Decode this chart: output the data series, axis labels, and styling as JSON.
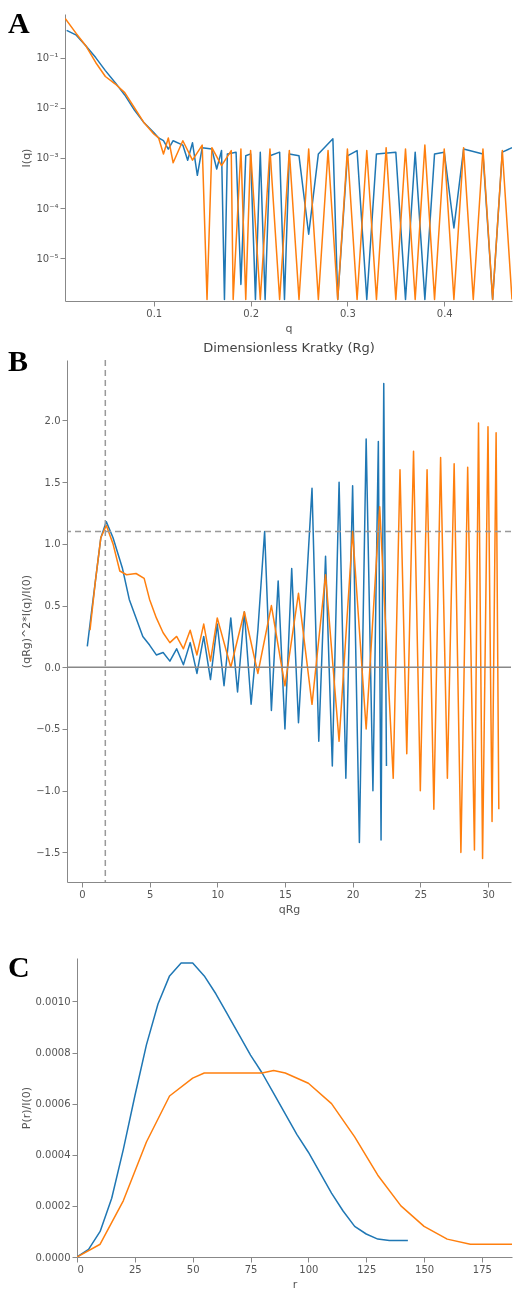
{
  "chart_data": [
    {
      "type": "line",
      "annotations": [
        "A"
      ],
      "xlabel": "q",
      "ylabel": "I(q)",
      "log": "y",
      "xlim": [
        0.0083,
        0.47
      ],
      "ylim": [
        1.4e-06,
        0.74
      ],
      "xticks": [
        0.1,
        0.2,
        0.3,
        0.4
      ],
      "yticks": [
        {
          "value": 0.1,
          "label": "10⁻¹"
        },
        {
          "value": 0.01,
          "label": "10⁻²"
        },
        {
          "value": 0.001,
          "label": "10⁻³"
        },
        {
          "value": 0.0001,
          "label": "10⁻⁴"
        },
        {
          "value": 1e-05,
          "label": "10⁻⁵"
        }
      ],
      "series": [
        {
          "color": "#1f77b4",
          "x": [
            0.01,
            0.02,
            0.03,
            0.04,
            0.05,
            0.06,
            0.07,
            0.08,
            0.09,
            0.1,
            0.105,
            0.11,
            0.115,
            0.12,
            0.13,
            0.135,
            0.14,
            0.145,
            0.15,
            0.16,
            0.165,
            0.17,
            0.173,
            0.176,
            0.185,
            0.19,
            0.195,
            0.2,
            0.205,
            0.21,
            0.215,
            0.22,
            0.23,
            0.235,
            0.24,
            0.25,
            0.26,
            0.27,
            0.285,
            0.29,
            0.3,
            0.31,
            0.32,
            0.33,
            0.35,
            0.36,
            0.37,
            0.38,
            0.39,
            0.4,
            0.41,
            0.42,
            0.44,
            0.45,
            0.46,
            0.47
          ],
          "values": [
            0.35,
            0.28,
            0.17,
            0.1,
            0.055,
            0.032,
            0.018,
            0.009,
            0.005,
            0.0032,
            0.0025,
            0.0022,
            0.0015,
            0.0022,
            0.0018,
            0.0009,
            0.002,
            0.00045,
            0.0016,
            0.0015,
            0.0006,
            0.0014,
            1.5e-06,
            0.0012,
            0.0013,
            3e-06,
            0.0011,
            0.0012,
            1.5e-06,
            0.0013,
            1.5e-06,
            0.0011,
            0.0013,
            1.5e-06,
            0.0012,
            0.0011,
            3e-05,
            0.0012,
            0.0024,
            1.5e-06,
            0.0011,
            0.0014,
            1.5e-06,
            0.0012,
            0.0013,
            1.5e-06,
            0.0013,
            1.5e-06,
            0.0012,
            0.0013,
            4e-05,
            0.0015,
            0.0012,
            1.5e-06,
            0.0013,
            0.0016
          ]
        },
        {
          "color": "#ff7f0e",
          "x": [
            0.0085,
            0.02,
            0.03,
            0.04,
            0.05,
            0.06,
            0.07,
            0.08,
            0.09,
            0.1,
            0.105,
            0.11,
            0.115,
            0.12,
            0.13,
            0.14,
            0.15,
            0.155,
            0.16,
            0.17,
            0.18,
            0.182,
            0.19,
            0.195,
            0.2,
            0.21,
            0.22,
            0.23,
            0.24,
            0.25,
            0.26,
            0.27,
            0.28,
            0.29,
            0.3,
            0.31,
            0.32,
            0.33,
            0.34,
            0.35,
            0.36,
            0.37,
            0.38,
            0.39,
            0.4,
            0.41,
            0.42,
            0.43,
            0.44,
            0.45,
            0.46,
            0.47
          ],
          "values": [
            0.6,
            0.3,
            0.17,
            0.08,
            0.042,
            0.03,
            0.02,
            0.01,
            0.005,
            0.003,
            0.0025,
            0.0012,
            0.0025,
            0.0008,
            0.0022,
            0.0009,
            0.0018,
            1.5e-06,
            0.0016,
            0.0007,
            0.0014,
            1.5e-06,
            0.0015,
            1.5e-06,
            0.0014,
            1.5e-06,
            0.0015,
            1.5e-06,
            0.0014,
            1.5e-06,
            0.0015,
            1.5e-06,
            0.0014,
            1.5e-06,
            0.0015,
            1.5e-06,
            0.0014,
            1.5e-06,
            0.0016,
            1.5e-06,
            0.0015,
            1.5e-06,
            0.0018,
            1.5e-06,
            0.0015,
            1.5e-06,
            0.0016,
            1.5e-06,
            0.0015,
            1.5e-06,
            0.0014,
            1.5e-06
          ]
        }
      ]
    },
    {
      "type": "line",
      "annotations": [
        "B"
      ],
      "title": "Dimensionless Kratky (Rg)",
      "xlabel": "qRg",
      "ylabel": "(qRg)^2*I(q)/I(0)",
      "xlim": [
        -1.1,
        31.7
      ],
      "ylim": [
        -1.74,
        2.49
      ],
      "xticks": [
        0,
        5,
        10,
        15,
        20,
        25,
        30
      ],
      "yticks": [
        {
          "value": -1.5,
          "label": "−1.5"
        },
        {
          "value": -1,
          "label": "−1.0"
        },
        {
          "value": -0.5,
          "label": "−0.5"
        },
        {
          "value": 0,
          "label": "0.0"
        },
        {
          "value": 0.5,
          "label": "0.5"
        },
        {
          "value": 1,
          "label": "1.0"
        },
        {
          "value": 1.5,
          "label": "1.5"
        },
        {
          "value": 2,
          "label": "2.0"
        }
      ],
      "ref_lines": [
        {
          "axis": "x",
          "value": 1.73,
          "color": "#999999",
          "line_style": "dashed"
        },
        {
          "axis": "y",
          "value": 1.1,
          "color": "#999999",
          "line_style": "dashed"
        },
        {
          "axis": "y",
          "value": 0,
          "color": "#888888",
          "line_style": "solid"
        }
      ],
      "series": [
        {
          "color": "#1f77b4",
          "x": [
            0.4,
            0.6,
            1,
            1.4,
            1.8,
            2.3,
            3,
            3.5,
            4,
            4.5,
            5,
            5.5,
            6,
            6.5,
            7,
            7.5,
            8,
            8.5,
            9,
            9.5,
            10,
            10.5,
            11,
            11.5,
            12,
            12.5,
            13,
            13.5,
            14,
            14.5,
            15,
            15.5,
            16,
            17,
            17.5,
            18,
            18.5,
            19,
            19.5,
            20,
            20.5,
            21,
            21.5,
            21.9,
            22.1,
            22.3,
            22.5
          ],
          "values": [
            0.17,
            0.35,
            0.7,
            1.05,
            1.18,
            1.05,
            0.8,
            0.55,
            0.4,
            0.25,
            0.18,
            0.1,
            0.12,
            0.05,
            0.15,
            0.02,
            0.2,
            -0.05,
            0.25,
            -0.1,
            0.35,
            -0.15,
            0.4,
            -0.2,
            0.45,
            -0.3,
            0.3,
            1.1,
            -0.35,
            0.7,
            -0.5,
            0.8,
            -0.45,
            1.45,
            -0.6,
            0.9,
            -0.8,
            1.5,
            -0.9,
            1.47,
            -1.42,
            1.85,
            -1.0,
            1.83,
            -1.4,
            2.3,
            -0.8
          ]
        },
        {
          "color": "#ff7f0e",
          "x": [
            0.6,
            1,
            1.4,
            1.8,
            2.3,
            2.8,
            3.3,
            4,
            4.6,
            5,
            5.5,
            6,
            6.5,
            7,
            7.5,
            8,
            8.5,
            9,
            9.5,
            10,
            11,
            12,
            13,
            14,
            15,
            16,
            17,
            18,
            19,
            20,
            21,
            22,
            23,
            23.5,
            24,
            24.5,
            25,
            25.5,
            26,
            26.5,
            27,
            27.5,
            28,
            28.5,
            29,
            29.3,
            29.6,
            30,
            30.3,
            30.6,
            30.8
          ],
          "values": [
            0.3,
            0.7,
            1.05,
            1.15,
            1.0,
            0.78,
            0.75,
            0.76,
            0.72,
            0.55,
            0.4,
            0.28,
            0.2,
            0.25,
            0.15,
            0.3,
            0.1,
            0.35,
            0.05,
            0.4,
            0.0,
            0.45,
            -0.05,
            0.5,
            -0.15,
            0.6,
            -0.3,
            0.75,
            -0.6,
            1.1,
            -0.5,
            1.3,
            -0.9,
            1.6,
            -0.7,
            1.75,
            -1.0,
            1.6,
            -1.15,
            1.7,
            -0.9,
            1.65,
            -1.5,
            1.62,
            -1.48,
            1.98,
            -1.55,
            1.95,
            -1.25,
            1.9,
            -1.15
          ]
        }
      ]
    },
    {
      "type": "line",
      "annotations": [
        "C"
      ],
      "xlabel": "r",
      "ylabel": "P(r)/I(0)",
      "xlim": [
        0,
        188
      ],
      "ylim": [
        0,
        0.00117
      ],
      "xticks": [
        0,
        25,
        50,
        75,
        100,
        125,
        150,
        175
      ],
      "yticks": [
        {
          "value": 0,
          "label": "0.0000"
        },
        {
          "value": 0.0002,
          "label": "0.0002"
        },
        {
          "value": 0.0004,
          "label": "0.0004"
        },
        {
          "value": 0.0006,
          "label": "0.0006"
        },
        {
          "value": 0.0008,
          "label": "0.0008"
        },
        {
          "value": 0.001,
          "label": "0.0010"
        }
      ],
      "series": [
        {
          "color": "#1f77b4",
          "x": [
            0,
            5,
            10,
            15,
            20,
            25,
            30,
            35,
            40,
            45,
            50,
            55,
            60,
            65,
            70,
            75,
            80,
            85,
            90,
            95,
            100,
            105,
            110,
            115,
            120,
            125,
            130,
            135,
            140,
            143
          ],
          "values": [
            0,
            3e-05,
            0.0001,
            0.00023,
            0.00042,
            0.00063,
            0.00083,
            0.00099,
            0.0011,
            0.00115,
            0.00115,
            0.0011,
            0.00103,
            0.00095,
            0.00087,
            0.00079,
            0.00072,
            0.00064,
            0.00056,
            0.00048,
            0.00041,
            0.00033,
            0.00025,
            0.00018,
            0.00012,
            9e-05,
            7e-05,
            6.5e-05,
            6.5e-05,
            6.5e-05
          ]
        },
        {
          "color": "#ff7f0e",
          "x": [
            0,
            10,
            20,
            30,
            40,
            50,
            55,
            60,
            70,
            80,
            85,
            90,
            100,
            110,
            120,
            130,
            140,
            150,
            160,
            170,
            180,
            188
          ],
          "values": [
            0,
            5e-05,
            0.00022,
            0.00045,
            0.00063,
            0.0007,
            0.00072,
            0.00072,
            0.00072,
            0.00072,
            0.00073,
            0.00072,
            0.00068,
            0.0006,
            0.00047,
            0.00032,
            0.0002,
            0.00012,
            7e-05,
            5e-05,
            5e-05,
            5e-05
          ]
        }
      ]
    }
  ]
}
